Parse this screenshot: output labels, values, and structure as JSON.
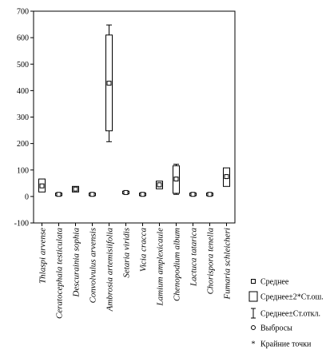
{
  "chart_data": {
    "type": "box",
    "ylim": [
      -100,
      700
    ],
    "yticks": [
      -100,
      0,
      100,
      200,
      300,
      400,
      500,
      600,
      700
    ],
    "categories": [
      "Thlaspi arvense",
      "Ceratocephala testiculata",
      "Descurainia sophia",
      "Convolvulus arvensis",
      "Ambrosia artemisiifolia",
      "Setaria viridis",
      "Vicia cracca",
      "Lamium amplexicaule",
      "Chenopodium album",
      "Lactuca tatarica",
      "Chorispora tenella",
      "Fumaria schleicheri"
    ],
    "series": [
      {
        "mean": 40,
        "box_low": 17,
        "box_high": 66,
        "whisker_low": 23,
        "whisker_high": 60
      },
      {
        "mean": 8,
        "box_low": 3,
        "box_high": 13,
        "whisker_low": 5,
        "whisker_high": 11
      },
      {
        "mean": 28,
        "box_low": 17,
        "box_high": 38,
        "whisker_low": 22,
        "whisker_high": 34
      },
      {
        "mean": 8,
        "box_low": 3,
        "box_high": 13,
        "whisker_low": 5,
        "whisker_high": 11
      },
      {
        "mean": 428,
        "box_low": 248,
        "box_high": 610,
        "whisker_low": 207,
        "whisker_high": 648
      },
      {
        "mean": 15,
        "box_low": 10,
        "box_high": 20,
        "whisker_low": 12,
        "whisker_high": 18
      },
      {
        "mean": 8,
        "box_low": 3,
        "box_high": 13,
        "whisker_low": 5,
        "whisker_high": 11
      },
      {
        "mean": 44,
        "box_low": 29,
        "box_high": 58,
        "whisker_low": 35,
        "whisker_high": 53
      },
      {
        "mean": 66,
        "box_low": 12,
        "box_high": 116,
        "whisker_low": 8,
        "whisker_high": 122
      },
      {
        "mean": 8,
        "box_low": 3,
        "box_high": 13,
        "whisker_low": 5,
        "whisker_high": 11
      },
      {
        "mean": 8,
        "box_low": 3,
        "box_high": 13,
        "whisker_low": 5,
        "whisker_high": 11
      },
      {
        "mean": 75,
        "box_low": 38,
        "box_high": 108,
        "whisker_low": 45,
        "whisker_high": 103
      }
    ],
    "legend": [
      {
        "symbol": "mean",
        "label": "Среднее"
      },
      {
        "symbol": "box",
        "label": "Среднее±2*Ст.ош."
      },
      {
        "symbol": "whisker",
        "label": "Среднее±Ст.откл."
      },
      {
        "symbol": "outlier",
        "label": "Выбросы"
      },
      {
        "symbol": "extreme",
        "label": "Крайние точки"
      }
    ],
    "legend_position": "bottom-right",
    "grid": false
  }
}
